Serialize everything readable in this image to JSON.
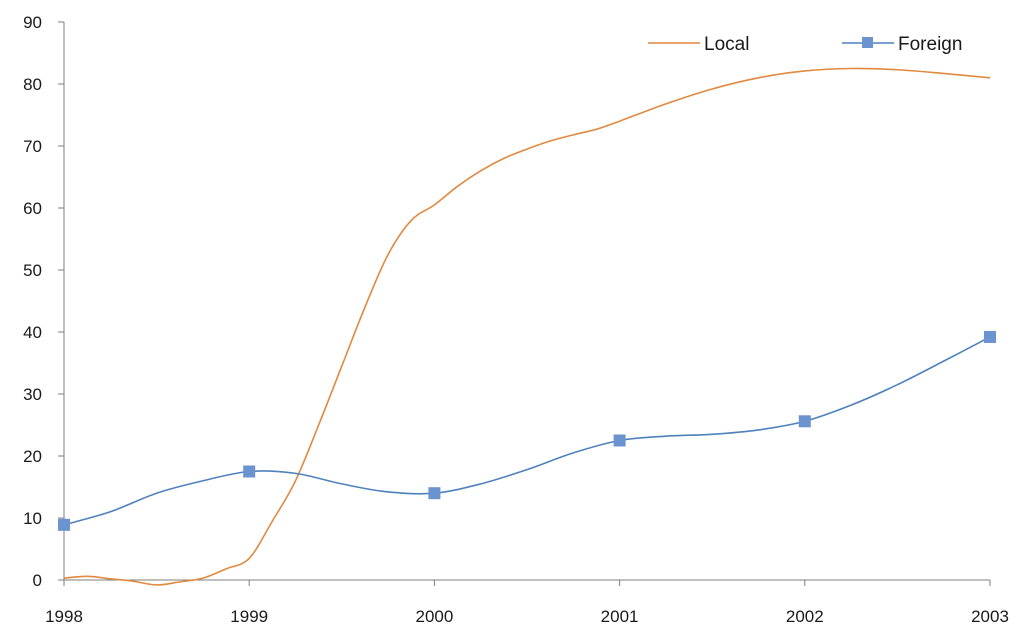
{
  "chart_data": {
    "type": "line",
    "title": "",
    "xlabel": "",
    "ylabel": "",
    "x_ticks": [
      "1998",
      "1999",
      "2000",
      "2001",
      "2002",
      "2003"
    ],
    "y_ticks": [
      "0",
      "10",
      "20",
      "30",
      "40",
      "50",
      "60",
      "70",
      "80",
      "90"
    ],
    "xlim": [
      1998,
      2003
    ],
    "ylim": [
      0,
      90
    ],
    "grid": false,
    "legend_position": "top-right",
    "series": [
      {
        "name": "Local",
        "color": "#E0893F",
        "marker": "none",
        "smooth": true,
        "points": [
          [
            1998.0,
            0.3
          ],
          [
            1998.125,
            0.6
          ],
          [
            1998.25,
            0.2
          ],
          [
            1998.375,
            -0.2
          ],
          [
            1998.5,
            -0.8
          ],
          [
            1998.625,
            -0.3
          ],
          [
            1998.75,
            0.3
          ],
          [
            1998.875,
            1.8
          ],
          [
            1999.0,
            3.5
          ],
          [
            1999.125,
            9.5
          ],
          [
            1999.25,
            16.0
          ],
          [
            1999.375,
            25.0
          ],
          [
            1999.5,
            34.5
          ],
          [
            1999.625,
            44.0
          ],
          [
            1999.75,
            52.5
          ],
          [
            1999.875,
            58.0
          ],
          [
            2000.0,
            60.5
          ],
          [
            2000.125,
            63.5
          ],
          [
            2000.25,
            66.0
          ],
          [
            2000.375,
            68.0
          ],
          [
            2000.5,
            69.5
          ],
          [
            2000.625,
            70.8
          ],
          [
            2000.75,
            71.8
          ],
          [
            2000.875,
            72.7
          ],
          [
            2001.0,
            74.0
          ],
          [
            2001.25,
            76.8
          ],
          [
            2001.5,
            79.2
          ],
          [
            2001.75,
            81.0
          ],
          [
            2002.0,
            82.1
          ],
          [
            2002.25,
            82.5
          ],
          [
            2002.5,
            82.3
          ],
          [
            2002.75,
            81.7
          ],
          [
            2003.0,
            81.0
          ]
        ]
      },
      {
        "name": "Foreign",
        "color": "#4F81BD",
        "marker": "square",
        "marker_color": "#6A93CF",
        "smooth": true,
        "points": [
          [
            1998.0,
            8.9
          ],
          [
            1998.25,
            11.0
          ],
          [
            1998.5,
            14.0
          ],
          [
            1998.75,
            16.0
          ],
          [
            1999.0,
            17.5
          ],
          [
            1999.25,
            17.2
          ],
          [
            1999.5,
            15.5
          ],
          [
            1999.75,
            14.2
          ],
          [
            2000.0,
            14.0
          ],
          [
            2000.25,
            15.5
          ],
          [
            2000.5,
            17.8
          ],
          [
            2000.75,
            20.5
          ],
          [
            2001.0,
            22.5
          ],
          [
            2001.25,
            23.2
          ],
          [
            2001.5,
            23.5
          ],
          [
            2001.75,
            24.2
          ],
          [
            2002.0,
            25.6
          ],
          [
            2002.25,
            28.2
          ],
          [
            2002.5,
            31.5
          ],
          [
            2002.75,
            35.3
          ],
          [
            2003.0,
            39.2
          ]
        ],
        "marker_points": [
          [
            1998,
            8.9
          ],
          [
            1999,
            17.5
          ],
          [
            2000,
            14.0
          ],
          [
            2001,
            22.5
          ],
          [
            2002,
            25.6
          ],
          [
            2003,
            39.2
          ]
        ]
      }
    ]
  }
}
